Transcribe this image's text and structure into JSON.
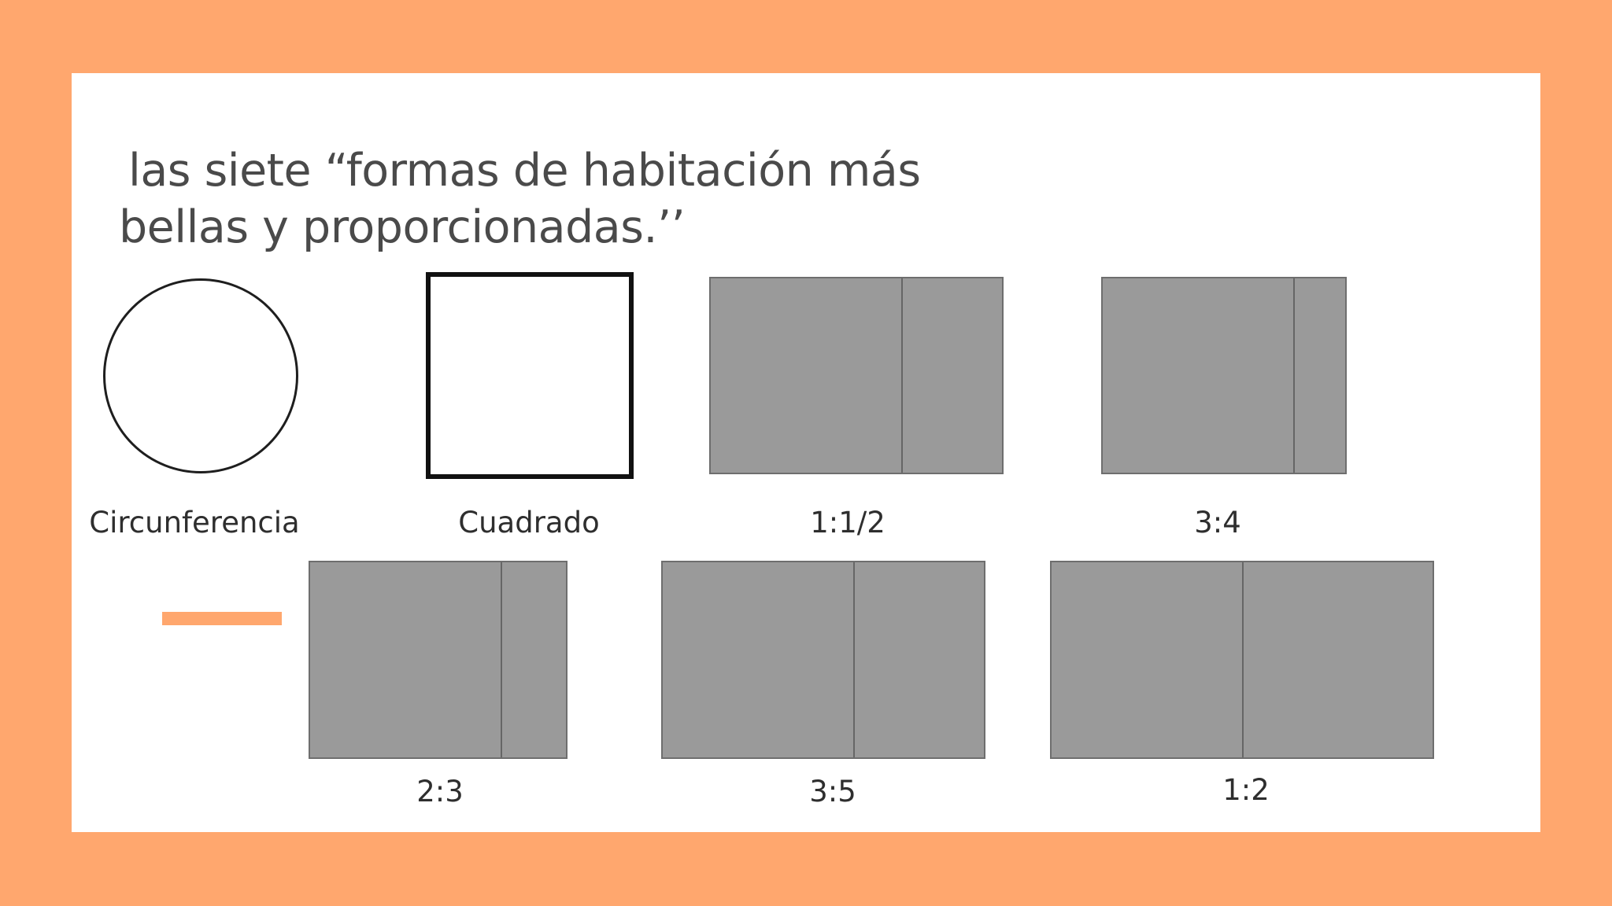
{
  "slide": {
    "title_line1": "las siete “formas de habitación más",
    "title_line2": "bellas y proporcionadas.’’",
    "background_color": "#FFA76E",
    "card_color": "#FFFFFF",
    "shape_fill_color": "#9A9A9A"
  },
  "shapes": {
    "circle": {
      "label": "Circunferencia"
    },
    "square": {
      "label": "Cuadrado"
    },
    "ratio_1_1_2": {
      "label": "1:1/2"
    },
    "ratio_3_4": {
      "label": "3:4"
    },
    "ratio_2_3": {
      "label": "2:3"
    },
    "ratio_3_5": {
      "label": "3:5"
    },
    "ratio_1_2": {
      "label": "1:2"
    }
  }
}
